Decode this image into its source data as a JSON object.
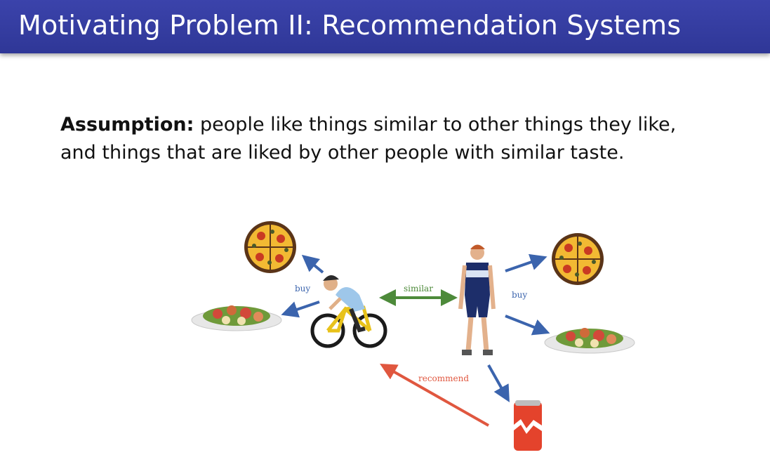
{
  "slide": {
    "title": "Motivating Problem II: Recommendation Systems",
    "assumption_label": "Assumption:",
    "assumption_text_line1": " people like things similar to other things they like,",
    "assumption_text_line2": "and things that are liked by other people with similar taste."
  },
  "diagram": {
    "labels": {
      "buy_left": "buy",
      "similar": "similar",
      "buy_right": "buy",
      "recommend": "recommend"
    },
    "colors": {
      "buy_arrow": "#3b64ad",
      "similar_arrow": "#4d8a3a",
      "recommend_arrow": "#e0573f",
      "title_bar": "#323a9e"
    }
  }
}
